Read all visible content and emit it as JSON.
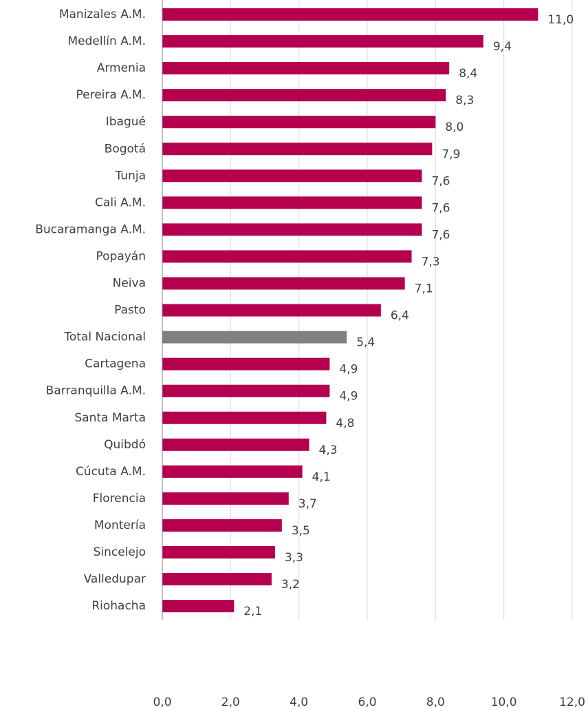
{
  "chart_data": {
    "type": "hbar",
    "categories": [
      "Manizales A.M.",
      "Medellín A.M.",
      "Armenia",
      "Pereira A.M.",
      "Ibagué",
      "Bogotá",
      "Tunja",
      "Cali A.M.",
      "Bucaramanga A.M.",
      "Popayán",
      "Neiva",
      "Pasto",
      "Total Nacional",
      "Cartagena",
      "Barranquilla A.M.",
      "Santa Marta",
      "Quibdó",
      "Cúcuta A.M.",
      "Florencia",
      "Montería",
      "Sincelejo",
      "Valledupar",
      "Riohacha"
    ],
    "values": [
      11.0,
      9.4,
      8.4,
      8.3,
      8.0,
      7.9,
      7.6,
      7.6,
      7.6,
      7.3,
      7.1,
      6.4,
      5.4,
      4.9,
      4.9,
      4.8,
      4.3,
      4.1,
      3.7,
      3.5,
      3.3,
      3.2,
      2.1
    ],
    "value_labels": [
      "11,0",
      "9,4",
      "8,4",
      "8,3",
      "8,0",
      "7,9",
      "7,6",
      "7,6",
      "7,6",
      "7,3",
      "7,1",
      "6,4",
      "5,4",
      "4,9",
      "4,9",
      "4,8",
      "4,3",
      "4,1",
      "3,7",
      "3,5",
      "3,3",
      "3,2",
      "2,1"
    ],
    "colors": [
      "#b5004f",
      "#b5004f",
      "#b5004f",
      "#b5004f",
      "#b5004f",
      "#b5004f",
      "#b5004f",
      "#b5004f",
      "#b5004f",
      "#b5004f",
      "#b5004f",
      "#b5004f",
      "#808080",
      "#b5004f",
      "#b5004f",
      "#b5004f",
      "#b5004f",
      "#b5004f",
      "#b5004f",
      "#b5004f",
      "#b5004f",
      "#b5004f",
      "#b5004f"
    ],
    "xlim": [
      0,
      12
    ],
    "xticks": [
      {
        "value": 0,
        "label": "0,0"
      },
      {
        "value": 2,
        "label": "2,0"
      },
      {
        "value": 4,
        "label": "4,0"
      },
      {
        "value": 6,
        "label": "6,0"
      },
      {
        "value": 8,
        "label": "8,0"
      },
      {
        "value": 10,
        "label": "10,0"
      },
      {
        "value": 12,
        "label": "12,0"
      }
    ],
    "grid": true
  }
}
